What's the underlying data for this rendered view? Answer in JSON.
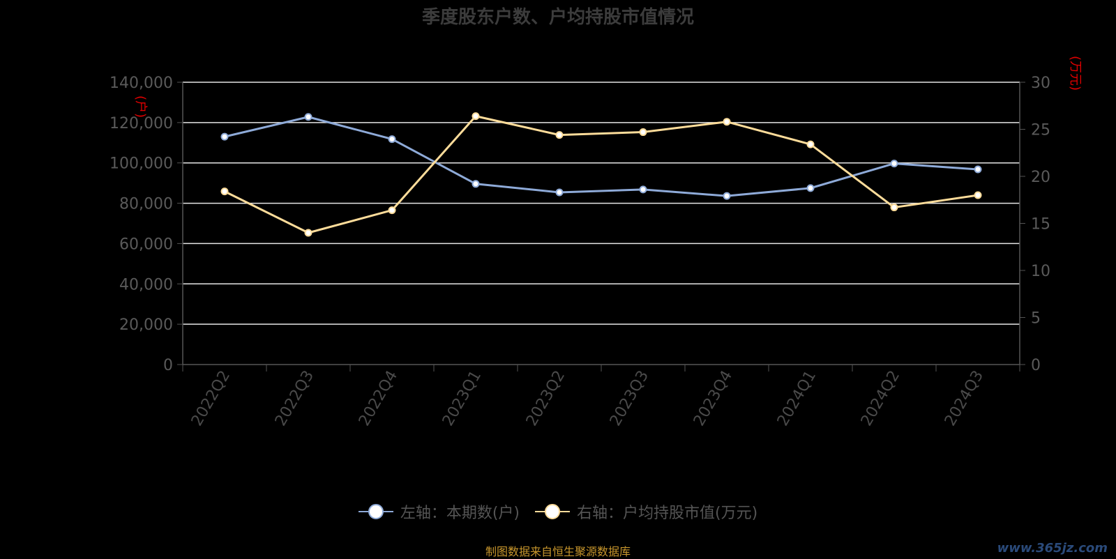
{
  "title": "季度股东户数、户均持股市值情况",
  "legend": {
    "left_label": "左轴：本期数(户)",
    "right_label": "右轴：户均持股市值(万元)"
  },
  "source": "制图数据来自恒生聚源数据库",
  "watermark": "www.365jz.com",
  "chart_data": {
    "type": "line",
    "title": "季度股东户数、户均持股市值情况",
    "categories": [
      "2022Q2",
      "2022Q3",
      "2022Q4",
      "2023Q1",
      "2023Q2",
      "2023Q3",
      "2023Q4",
      "2024Q1",
      "2024Q2",
      "2024Q3"
    ],
    "left_axis": {
      "unit": "(户)",
      "ylim": [
        0,
        140000
      ],
      "ticks": [
        0,
        20000,
        40000,
        60000,
        80000,
        100000,
        120000,
        140000
      ],
      "tick_labels": [
        "0",
        "20,000",
        "40,000",
        "60,000",
        "80,000",
        "100,000",
        "120,000",
        "140,000"
      ]
    },
    "right_axis": {
      "unit": "(万元)",
      "ylim": [
        0,
        30
      ],
      "ticks": [
        0,
        5,
        10,
        15,
        20,
        25,
        30
      ],
      "tick_labels": [
        "0",
        "5",
        "10",
        "15",
        "20",
        "25",
        "30"
      ]
    },
    "grid": true,
    "legend_position": "bottom",
    "series": [
      {
        "name": "左轴：本期数(户)",
        "axis": "left",
        "color": "#8eaad8",
        "values": [
          113000,
          122800,
          111800,
          89600,
          85400,
          86800,
          83600,
          87500,
          99700,
          96800
        ]
      },
      {
        "name": "右轴：户均持股市值(万元)",
        "axis": "right",
        "color": "#fddc9a",
        "values": [
          18.4,
          14.0,
          16.4,
          26.4,
          24.4,
          24.7,
          25.8,
          23.4,
          16.7,
          18.0
        ]
      }
    ]
  }
}
